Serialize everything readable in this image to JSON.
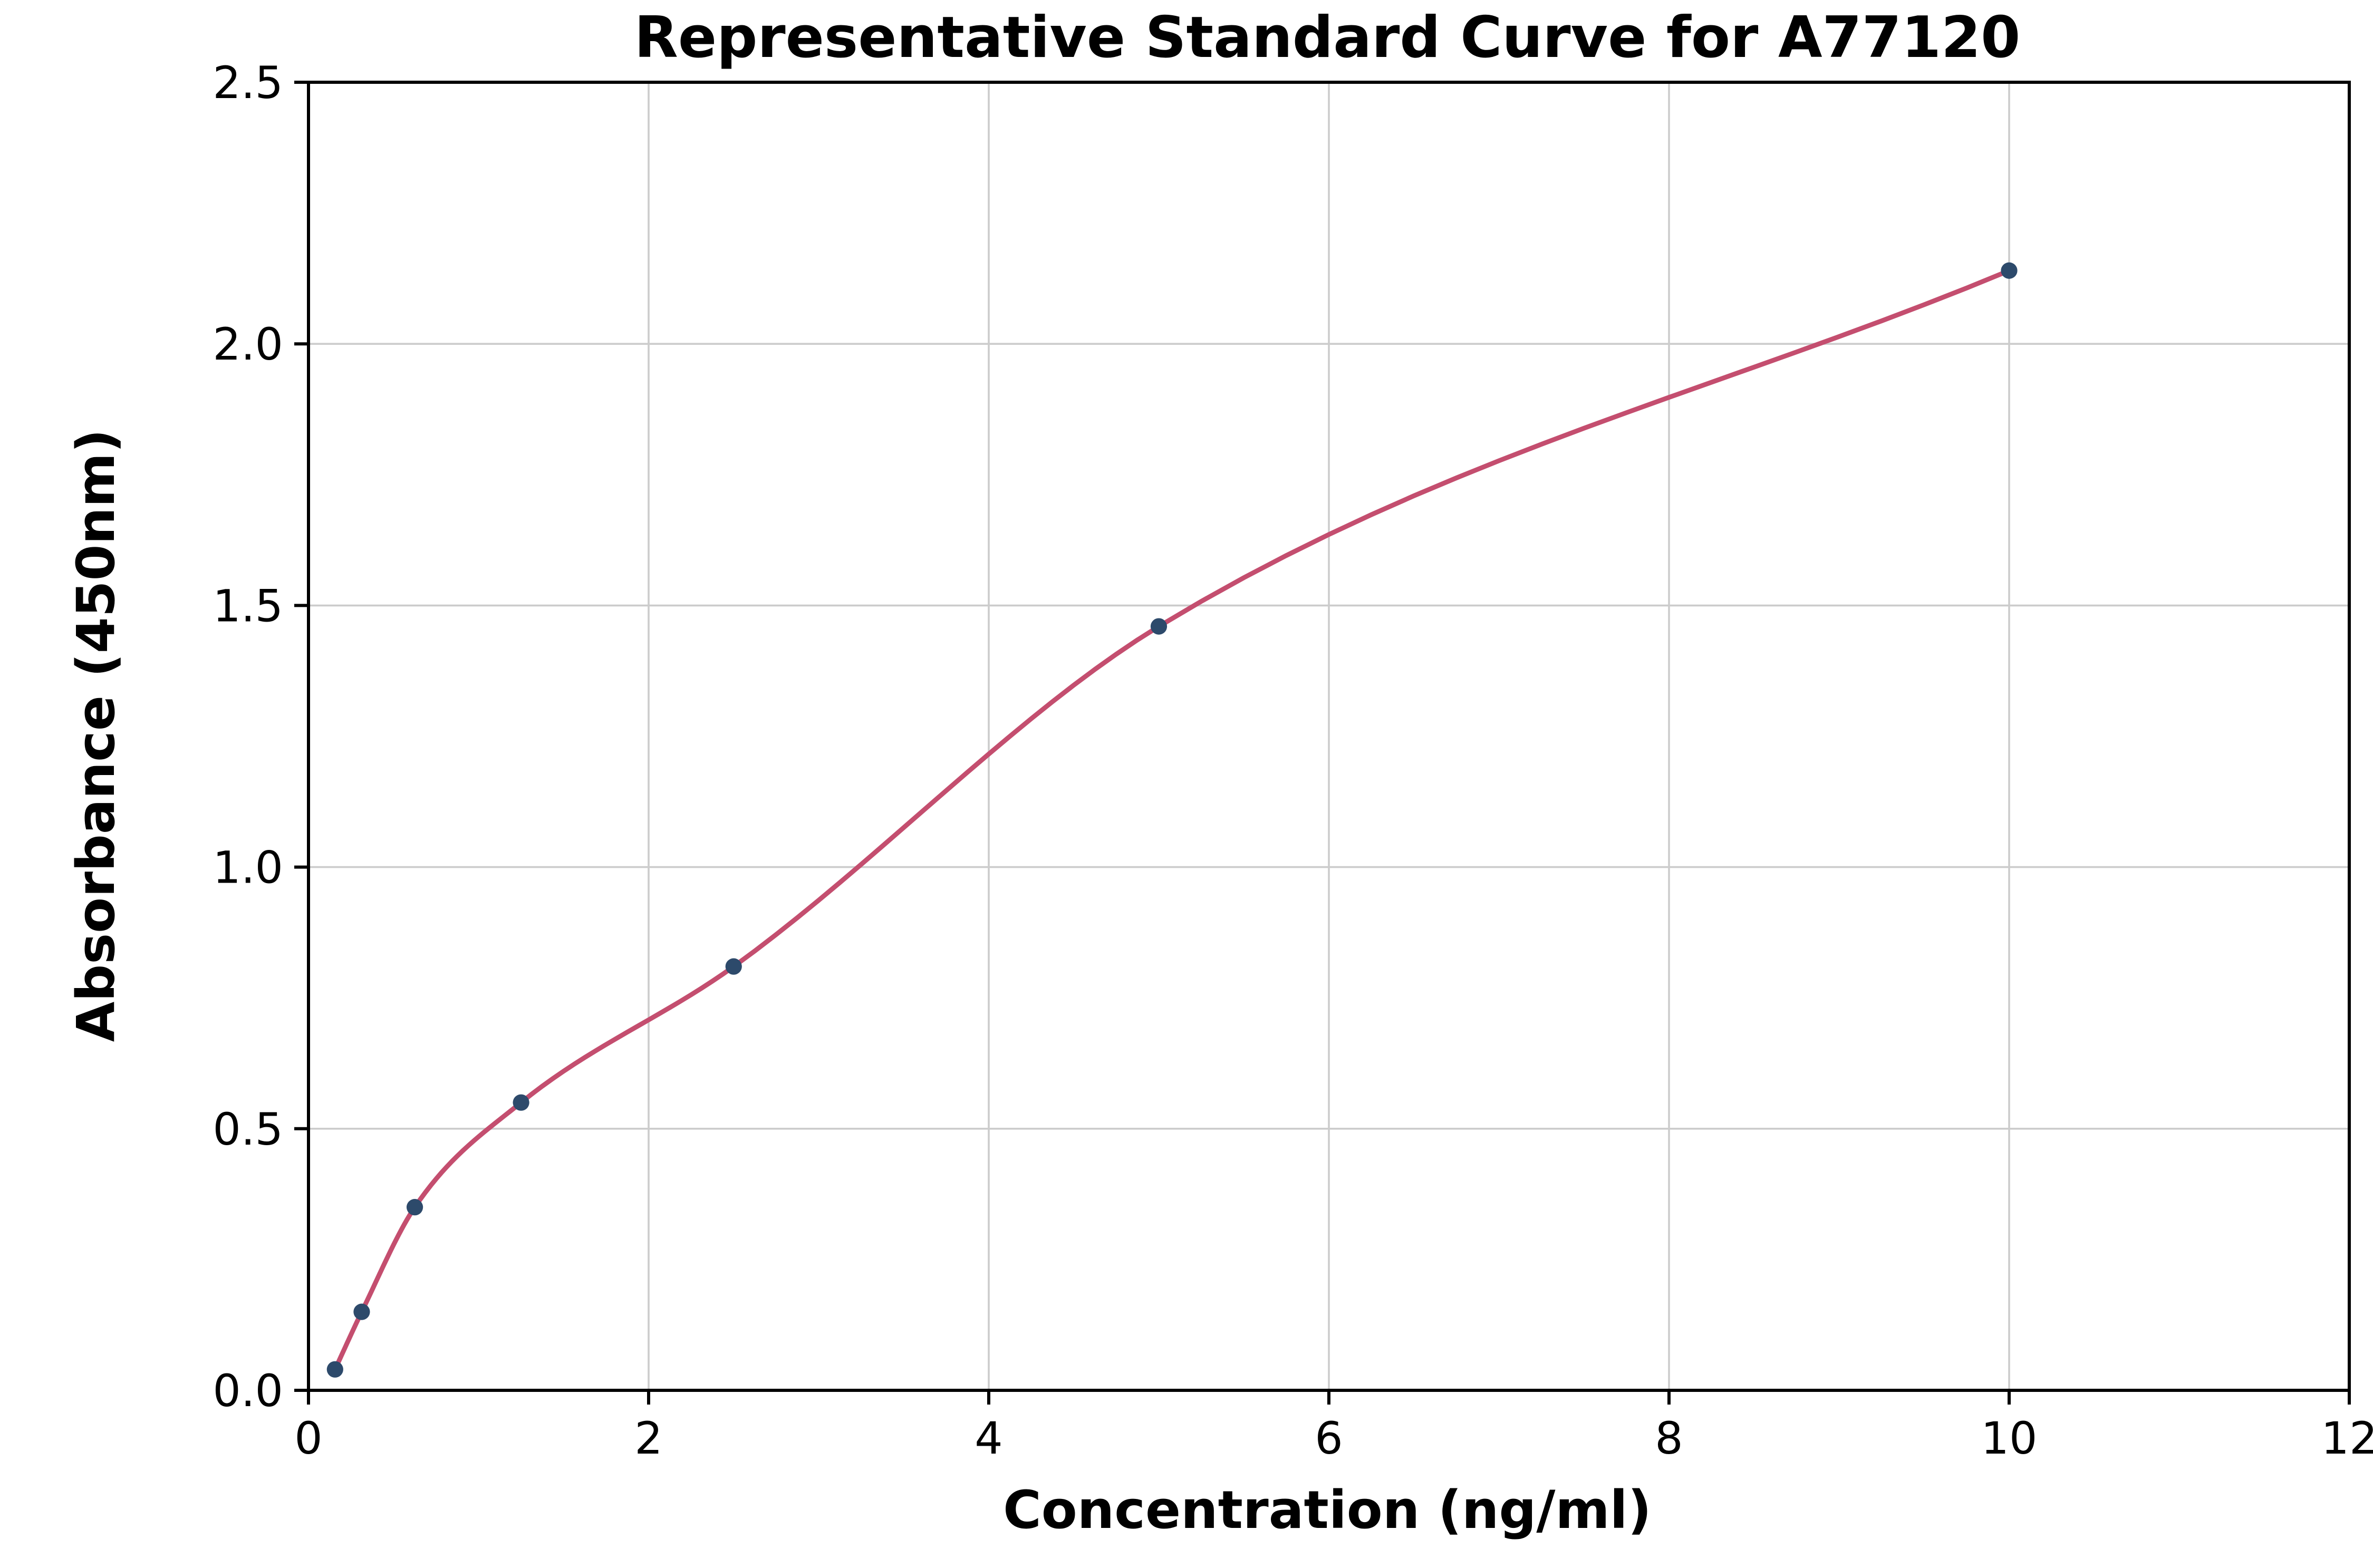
{
  "chart_data": {
    "type": "scatter",
    "title": "Representative Standard Curve for A77120",
    "xlabel": "Concentration (ng/ml)",
    "ylabel": "Absorbance (450nm)",
    "xlim": [
      0,
      12
    ],
    "ylim": [
      0,
      2.5
    ],
    "x": [
      0.156,
      0.313,
      0.625,
      1.25,
      2.5,
      5,
      10
    ],
    "y": [
      0.04,
      0.15,
      0.35,
      0.55,
      0.81,
      1.46,
      2.14
    ],
    "xticks": [
      0,
      2,
      4,
      6,
      8,
      10,
      12
    ],
    "xtick_labels": [
      "0",
      "2",
      "4",
      "6",
      "8",
      "10",
      "12"
    ],
    "yticks": [
      0,
      0.5,
      1,
      1.5,
      2,
      2.5
    ],
    "ytick_labels": [
      "0.0",
      "0.5",
      "1.0",
      "1.5",
      "2.0",
      "2.5"
    ],
    "grid": true,
    "legend_position": "none",
    "point_color": "#2d4a6b",
    "curve_color": "#c44e6f",
    "grid_color": "#cccccc",
    "spine_color": "#000000"
  }
}
